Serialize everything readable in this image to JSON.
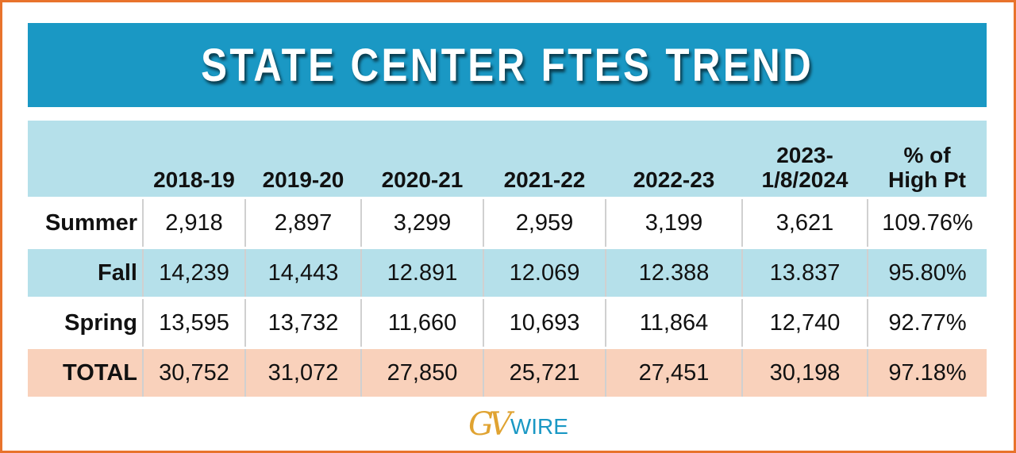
{
  "title": "STATE CENTER FTES TREND",
  "table": {
    "header": [
      "2018-19",
      "2019-20",
      "2020-21",
      "2021-22",
      "2022-23",
      "2023-\n1/8/2024",
      "% of\nHigh Pt"
    ],
    "rows": [
      {
        "label": "Summer",
        "cells": [
          "2,918",
          "2,897",
          "3,299",
          "2,959",
          "3,199",
          "3,621",
          "109.76%"
        ]
      },
      {
        "label": "Fall",
        "cells": [
          "14,239",
          "14,443",
          "12.891",
          "12.069",
          "12.388",
          "13.837",
          "95.80%"
        ]
      },
      {
        "label": "Spring",
        "cells": [
          "13,595",
          "13,732",
          "11,660",
          "10,693",
          "11,864",
          "12,740",
          "92.77%"
        ]
      },
      {
        "label": "TOTAL",
        "cells": [
          "30,752",
          "31,072",
          "27,850",
          "25,721",
          "27,451",
          "30,198",
          "97.18%"
        ]
      }
    ]
  },
  "logo": {
    "mark": "GV",
    "text": "WIRE"
  }
}
